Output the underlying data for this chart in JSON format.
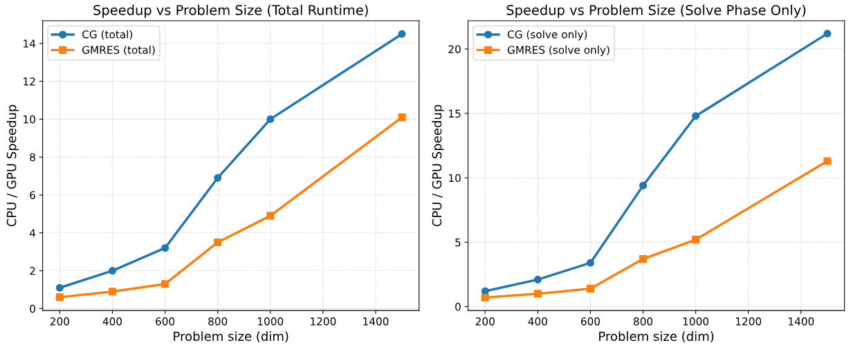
{
  "chart_data": [
    {
      "type": "line",
      "title": "Speedup vs Problem Size (Total Runtime)",
      "xlabel": "Problem size (dim)",
      "ylabel": "CPU / GPU Speedup",
      "x": [
        200,
        400,
        600,
        800,
        1000,
        1500
      ],
      "series": [
        {
          "name": "CG (total)",
          "color": "#1f77b4",
          "marker": "circle",
          "values": [
            1.1,
            2.0,
            3.2,
            6.9,
            10.0,
            14.5
          ]
        },
        {
          "name": "GMRES (total)",
          "color": "#ff7f0e",
          "marker": "square",
          "values": [
            0.6,
            0.9,
            1.3,
            3.5,
            4.9,
            10.1
          ]
        }
      ],
      "xlim": [
        135,
        1565
      ],
      "xticks": [
        200,
        400,
        600,
        800,
        1000,
        1200,
        1400
      ],
      "ylim": [
        -0.1,
        15.2
      ],
      "yticks": [
        0,
        2,
        4,
        6,
        8,
        10,
        12,
        14
      ],
      "grid": true,
      "legend": "top left",
      "line_style": "solid"
    },
    {
      "type": "line",
      "title": "Speedup vs Problem Size (Solve Phase Only)",
      "xlabel": "Problem size (dim)",
      "ylabel": "CPU / GPU Speedup",
      "x": [
        200,
        400,
        600,
        800,
        1000,
        1500
      ],
      "series": [
        {
          "name": "CG (solve only)",
          "color": "#1f77b4",
          "marker": "circle",
          "values": [
            1.2,
            2.1,
            3.4,
            9.4,
            14.8,
            21.2
          ]
        },
        {
          "name": "GMRES (solve only)",
          "color": "#ff7f0e",
          "marker": "square",
          "values": [
            0.7,
            1.0,
            1.4,
            3.7,
            5.2,
            11.3
          ]
        }
      ],
      "xlim": [
        135,
        1565
      ],
      "xticks": [
        200,
        400,
        600,
        800,
        1000,
        1200,
        1400
      ],
      "ylim": [
        -0.3,
        22.2
      ],
      "yticks": [
        0,
        5,
        10,
        15,
        20
      ],
      "grid": true,
      "legend": "top left",
      "line_style": "solid"
    }
  ]
}
